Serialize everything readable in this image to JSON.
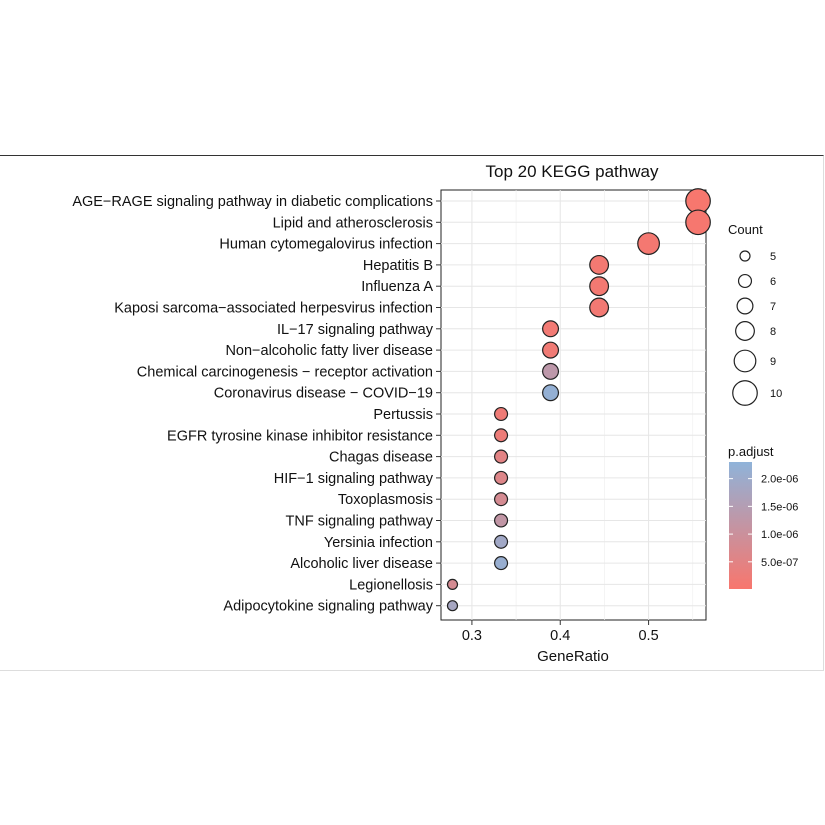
{
  "chart_data": {
    "type": "scatter",
    "title": "Top 20 KEGG pathway",
    "xlabel": "GeneRatio",
    "xlim": [
      0.265,
      0.565
    ],
    "xticks": [
      0.3,
      0.4,
      0.5
    ],
    "xtick_labels": [
      "0.3",
      "0.4",
      "0.5"
    ],
    "grid": true,
    "legend_position": "right",
    "points": [
      {
        "term": "AGE−RAGE signaling pathway in diabetic complications",
        "gene_ratio": 0.556,
        "count": 10,
        "p_adjust": 4e-08
      },
      {
        "term": "Lipid and atherosclerosis",
        "gene_ratio": 0.556,
        "count": 10,
        "p_adjust": 6e-08
      },
      {
        "term": "Human cytomegalovirus infection",
        "gene_ratio": 0.5,
        "count": 9,
        "p_adjust": 1e-07
      },
      {
        "term": "Hepatitis B",
        "gene_ratio": 0.444,
        "count": 8,
        "p_adjust": 1.2e-07
      },
      {
        "term": "Influenza A",
        "gene_ratio": 0.444,
        "count": 8,
        "p_adjust": 1.2e-07
      },
      {
        "term": "Kaposi sarcoma−associated herpesvirus infection",
        "gene_ratio": 0.444,
        "count": 8,
        "p_adjust": 1.3e-07
      },
      {
        "term": "IL−17 signaling pathway",
        "gene_ratio": 0.389,
        "count": 7,
        "p_adjust": 1.5e-07
      },
      {
        "term": "Non−alcoholic fatty liver disease",
        "gene_ratio": 0.389,
        "count": 7,
        "p_adjust": 1.8e-07
      },
      {
        "term": "Chemical carcinogenesis − receptor activation",
        "gene_ratio": 0.389,
        "count": 7,
        "p_adjust": 1.3e-06
      },
      {
        "term": "Coronavirus disease − COVID−19",
        "gene_ratio": 0.389,
        "count": 7,
        "p_adjust": 2.2e-06
      },
      {
        "term": "Pertussis",
        "gene_ratio": 0.333,
        "count": 6,
        "p_adjust": 2e-07
      },
      {
        "term": "EGFR tyrosine kinase inhibitor resistance",
        "gene_ratio": 0.333,
        "count": 6,
        "p_adjust": 2.5e-07
      },
      {
        "term": "Chagas disease",
        "gene_ratio": 0.333,
        "count": 6,
        "p_adjust": 5e-07
      },
      {
        "term": "HIF−1 signaling pathway",
        "gene_ratio": 0.333,
        "count": 6,
        "p_adjust": 6e-07
      },
      {
        "term": "Toxoplasmosis",
        "gene_ratio": 0.333,
        "count": 6,
        "p_adjust": 8e-07
      },
      {
        "term": "TNF signaling pathway",
        "gene_ratio": 0.333,
        "count": 6,
        "p_adjust": 1.2e-06
      },
      {
        "term": "Yersinia infection",
        "gene_ratio": 0.333,
        "count": 6,
        "p_adjust": 1.9e-06
      },
      {
        "term": "Alcoholic liver disease",
        "gene_ratio": 0.333,
        "count": 6,
        "p_adjust": 2.1e-06
      },
      {
        "term": "Legionellosis",
        "gene_ratio": 0.278,
        "count": 5,
        "p_adjust": 8e-07
      },
      {
        "term": "Adipocytokine signaling pathway",
        "gene_ratio": 0.278,
        "count": 5,
        "p_adjust": 1.8e-06
      }
    ],
    "size_legend": {
      "title": "Count",
      "values": [
        5,
        6,
        7,
        8,
        9,
        10
      ],
      "labels": [
        "5",
        "6",
        "7",
        "8",
        "9",
        "10"
      ]
    },
    "color_legend": {
      "title": "p.adjust",
      "min": 1e-08,
      "max": 2.3e-06,
      "low_color": "#f8766d",
      "high_color": "#8fb3d9",
      "ticks": [
        5e-07,
        1e-06,
        1.5e-06,
        2e-06
      ],
      "tick_labels": [
        "5.0e-07",
        "1.0e-06",
        "1.5e-06",
        "2.0e-06"
      ]
    }
  }
}
